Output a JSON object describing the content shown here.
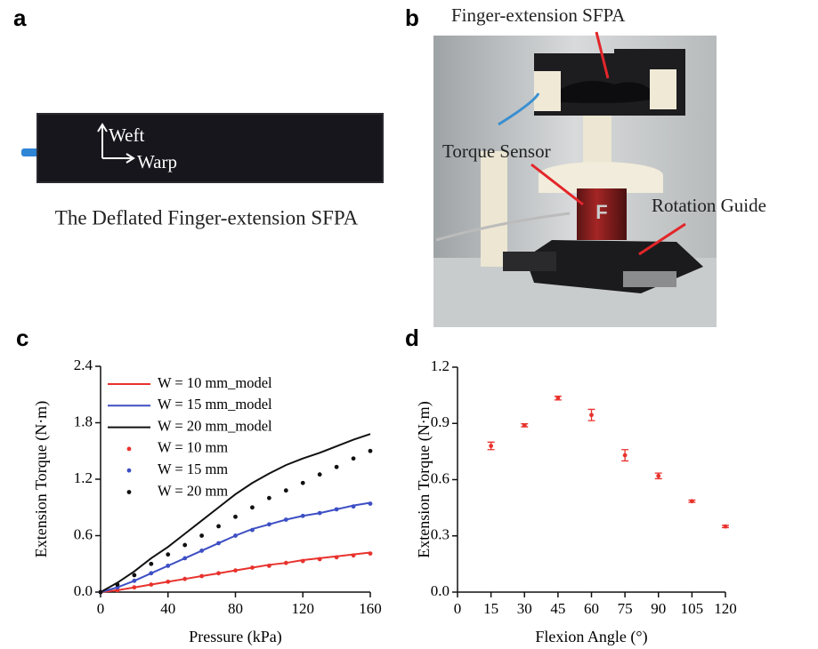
{
  "panel_a": {
    "label": "a",
    "weft": "Weft",
    "warp": "Warp",
    "caption": "The Deflated Finger-extension SFPA"
  },
  "panel_b": {
    "label": "b",
    "callouts": [
      "Finger-extension SFPA",
      "Torque Sensor",
      "Rotation Guide"
    ]
  },
  "chart_data": [
    {
      "type": "line",
      "panel": "c",
      "xlabel": "Pressure (kPa)",
      "ylabel": "Extension Torque (N·m)",
      "x": [
        0,
        10,
        20,
        30,
        40,
        50,
        60,
        70,
        80,
        90,
        100,
        110,
        120,
        130,
        140,
        150,
        160
      ],
      "xlim": [
        0,
        160
      ],
      "xticks": [
        0,
        40,
        80,
        120,
        160
      ],
      "ylim": [
        0,
        2.4
      ],
      "yticks": [
        {
          "value": 0,
          "label": "0.0"
        },
        0.6,
        1.2,
        1.8,
        2.4
      ],
      "legend": "upper left",
      "series": [
        {
          "name": "W = 10 mm_model",
          "color": "#e8322d",
          "mode": "line",
          "values": [
            0,
            0.02,
            0.05,
            0.08,
            0.11,
            0.14,
            0.17,
            0.2,
            0.23,
            0.26,
            0.29,
            0.31,
            0.34,
            0.36,
            0.38,
            0.4,
            0.42
          ]
        },
        {
          "name": "W = 15 mm_model",
          "color": "#3d4fc4",
          "mode": "line",
          "values": [
            0,
            0.05,
            0.12,
            0.2,
            0.28,
            0.36,
            0.44,
            0.52,
            0.6,
            0.67,
            0.72,
            0.77,
            0.81,
            0.84,
            0.88,
            0.92,
            0.95
          ]
        },
        {
          "name": "W = 20 mm_model",
          "color": "#111111",
          "mode": "line",
          "values": [
            0,
            0.1,
            0.22,
            0.36,
            0.48,
            0.62,
            0.76,
            0.9,
            1.04,
            1.16,
            1.26,
            1.35,
            1.42,
            1.48,
            1.55,
            1.62,
            1.68
          ]
        },
        {
          "name": "W = 10 mm",
          "color": "#e8322d",
          "mode": "markers",
          "values": [
            0,
            0.02,
            0.05,
            0.08,
            0.11,
            0.14,
            0.17,
            0.2,
            0.23,
            0.26,
            0.28,
            0.31,
            0.33,
            0.35,
            0.37,
            0.39,
            0.41
          ]
        },
        {
          "name": "W = 15 mm",
          "color": "#3d4fc4",
          "mode": "markers",
          "values": [
            0,
            0.05,
            0.12,
            0.2,
            0.28,
            0.36,
            0.44,
            0.52,
            0.6,
            0.66,
            0.72,
            0.77,
            0.81,
            0.84,
            0.88,
            0.91,
            0.94
          ]
        },
        {
          "name": "W = 20 mm",
          "color": "#111111",
          "mode": "markers",
          "values": [
            0,
            0.08,
            0.18,
            0.3,
            0.4,
            0.5,
            0.6,
            0.7,
            0.8,
            0.9,
            1.0,
            1.08,
            1.16,
            1.25,
            1.33,
            1.42,
            1.5
          ]
        }
      ]
    },
    {
      "type": "scatter",
      "panel": "d",
      "xlabel": "Flexion Angle (°)",
      "ylabel": "Extension Torque (N·m)",
      "x": [
        15,
        30,
        45,
        60,
        75,
        90,
        105,
        120
      ],
      "xlim": [
        0,
        120
      ],
      "xticks": [
        0,
        15,
        30,
        45,
        60,
        75,
        90,
        105,
        120
      ],
      "ylim": [
        0,
        1.2
      ],
      "yticks": [
        {
          "value": 0,
          "label": "0.0"
        },
        0.3,
        0.6,
        0.9,
        1.2
      ],
      "series": [
        {
          "color": "#e8322d",
          "mode": "markers",
          "values": [
            0.78,
            0.89,
            1.035,
            0.945,
            0.73,
            0.62,
            0.485,
            0.35
          ],
          "errors": [
            0.02,
            0.008,
            0.01,
            0.03,
            0.03,
            0.015,
            0.006,
            0.006
          ]
        }
      ]
    }
  ]
}
